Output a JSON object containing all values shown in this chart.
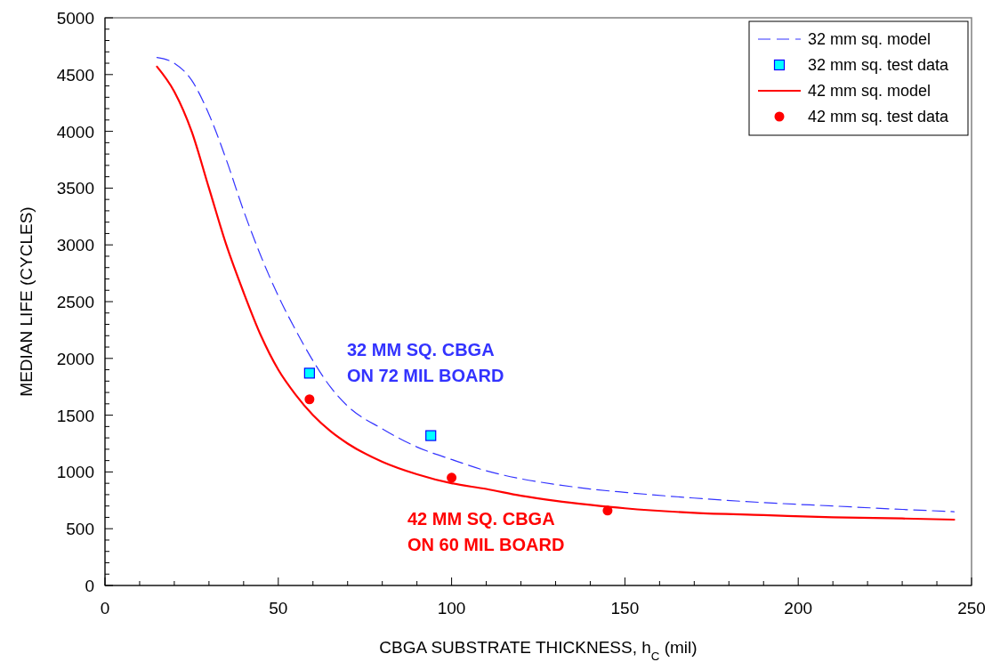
{
  "chart_data": {
    "type": "line",
    "xlabel": "CBGA SUBSTRATE THICKNESS, h$_{C}$ (mil)",
    "ylabel": "MEDIAN LIFE (CYCLES)",
    "xlim": [
      0,
      250
    ],
    "xticks": [
      0,
      {
        "value": 10,
        "label": null
      },
      {
        "value": 20,
        "label": null
      },
      {
        "value": 30,
        "label": null
      },
      {
        "value": 40,
        "label": null
      },
      50,
      {
        "value": 60,
        "label": null
      },
      {
        "value": 70,
        "label": null
      },
      {
        "value": 80,
        "label": null
      },
      {
        "value": 90,
        "label": null
      },
      100,
      {
        "value": 110,
        "label": null
      },
      {
        "value": 120,
        "label": null
      },
      {
        "value": 130,
        "label": null
      },
      {
        "value": 140,
        "label": null
      },
      150,
      {
        "value": 160,
        "label": null
      },
      {
        "value": 170,
        "label": null
      },
      {
        "value": 180,
        "label": null
      },
      {
        "value": 190,
        "label": null
      },
      200,
      {
        "value": 210,
        "label": null
      },
      {
        "value": 220,
        "label": null
      },
      {
        "value": 230,
        "label": null
      },
      {
        "value": 240,
        "label": null
      },
      250
    ],
    "ylim": [
      0,
      5000
    ],
    "yticks": [
      0,
      {
        "value": 100,
        "label": null
      },
      {
        "value": 200,
        "label": null
      },
      {
        "value": 300,
        "label": null
      },
      {
        "value": 400,
        "label": null
      },
      500,
      {
        "value": 600,
        "label": null
      },
      {
        "value": 700,
        "label": null
      },
      {
        "value": 800,
        "label": null
      },
      {
        "value": 900,
        "label": null
      },
      1000,
      {
        "value": 1100,
        "label": null
      },
      {
        "value": 1200,
        "label": null
      },
      {
        "value": 1300,
        "label": null
      },
      {
        "value": 1400,
        "label": null
      },
      1500,
      {
        "value": 1600,
        "label": null
      },
      {
        "value": 1700,
        "label": null
      },
      {
        "value": 1800,
        "label": null
      },
      {
        "value": 1900,
        "label": null
      },
      2000,
      {
        "value": 2100,
        "label": null
      },
      {
        "value": 2200,
        "label": null
      },
      {
        "value": 2300,
        "label": null
      },
      {
        "value": 2400,
        "label": null
      },
      2500,
      {
        "value": 2600,
        "label": null
      },
      {
        "value": 2700,
        "label": null
      },
      {
        "value": 2800,
        "label": null
      },
      {
        "value": 2900,
        "label": null
      },
      3000,
      {
        "value": 3100,
        "label": null
      },
      {
        "value": 3200,
        "label": null
      },
      {
        "value": 3300,
        "label": null
      },
      {
        "value": 3400,
        "label": null
      },
      3500,
      {
        "value": 3600,
        "label": null
      },
      {
        "value": 3700,
        "label": null
      },
      {
        "value": 3800,
        "label": null
      },
      {
        "value": 3900,
        "label": null
      },
      4000,
      {
        "value": 4100,
        "label": null
      },
      {
        "value": 4200,
        "label": null
      },
      {
        "value": 4300,
        "label": null
      },
      {
        "value": 4400,
        "label": null
      },
      4500,
      {
        "value": 4600,
        "label": null
      },
      {
        "value": 4700,
        "label": null
      },
      {
        "value": 4800,
        "label": null
      },
      {
        "value": 4900,
        "label": null
      },
      5000
    ],
    "grid": false,
    "legend": "top right",
    "series": [
      {
        "name": "32 mm sq. model",
        "line_style": "dashed",
        "marker": "none",
        "color": "#3333ff",
        "x": [
          15,
          20,
          25,
          30,
          35,
          40,
          45,
          50,
          55,
          60,
          65,
          70,
          80,
          90,
          100,
          110,
          120,
          130,
          140,
          150,
          170,
          190,
          210,
          230,
          245
        ],
        "values": [
          4650,
          4600,
          4450,
          4150,
          3750,
          3300,
          2900,
          2550,
          2250,
          1980,
          1750,
          1580,
          1380,
          1220,
          1110,
          1010,
          940,
          890,
          850,
          820,
          770,
          730,
          700,
          670,
          650
        ]
      },
      {
        "name": "32 mm sq. test data",
        "type": "scatter",
        "marker": "square",
        "color": "#00ffff",
        "x": [
          59,
          94
        ],
        "values": [
          1870,
          1320
        ]
      },
      {
        "name": "42 mm sq. model",
        "line_style": "solid",
        "marker": "none",
        "color": "#ff0000",
        "x": [
          15,
          20,
          25,
          30,
          35,
          40,
          45,
          50,
          55,
          60,
          65,
          70,
          80,
          90,
          100,
          110,
          120,
          130,
          140,
          150,
          170,
          190,
          210,
          230,
          245
        ],
        "values": [
          4570,
          4350,
          4000,
          3500,
          3000,
          2580,
          2200,
          1900,
          1680,
          1500,
          1360,
          1250,
          1090,
          980,
          900,
          850,
          790,
          745,
          710,
          680,
          640,
          620,
          600,
          590,
          580
        ]
      },
      {
        "name": "42 mm sq. test data",
        "type": "scatter",
        "marker": "circle",
        "color": "#ff0000",
        "x": [
          59,
          100,
          145
        ],
        "values": [
          1640,
          950,
          660
        ]
      }
    ],
    "annotations": [
      "32 MM SQ. CBGA\nON 72 MIL BOARD",
      "42 MM SQ. CBGA\nON 60 MIL BOARD"
    ]
  }
}
